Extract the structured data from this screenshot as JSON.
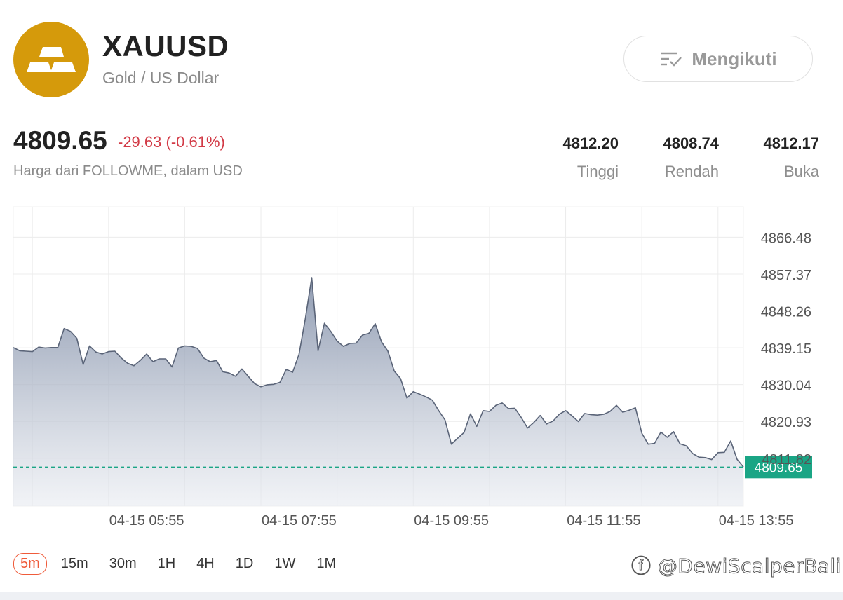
{
  "header": {
    "symbol": "XAUUSD",
    "name": "Gold / US Dollar",
    "follow_label": "Mengikuti",
    "logo_icon": "gold-bars-icon",
    "logo_color": "#d59a0b"
  },
  "quote": {
    "price": "4809.65",
    "change": "-29.63 (-0.61%)",
    "source": "Harga dari FOLLOWME, dalam USD",
    "change_color": "#d23a46"
  },
  "stats": [
    {
      "value": "4812.20",
      "label": "Tinggi"
    },
    {
      "value": "4808.74",
      "label": "Rendah"
    },
    {
      "value": "4812.17",
      "label": "Buka"
    }
  ],
  "chart_data": {
    "type": "area",
    "y_ticks": [
      "4866.48",
      "4857.37",
      "4848.26",
      "4839.15",
      "4830.04",
      "4820.93",
      "4811.82"
    ],
    "y_ticks_num": [
      4866.48,
      4857.37,
      4848.26,
      4839.15,
      4830.04,
      4820.93,
      4811.82
    ],
    "ylim": [
      4800.0,
      4874.0
    ],
    "x_ticks": [
      "04-15 05:55",
      "04-15 07:55",
      "04-15 09:55",
      "04-15 11:55",
      "04-15 13:55"
    ],
    "x_tick_index": [
      24,
      48,
      72,
      96,
      120
    ],
    "current_price_label": "4809.65",
    "current_price": 4809.65,
    "grid": true,
    "line_color": "#5a6478",
    "current_price_color": "#1aa585",
    "series": [
      {
        "values": [
          4839.2,
          4838.4,
          4838.3,
          4838.2,
          4839.3,
          4839.1,
          4839.2,
          4839.2,
          4843.9,
          4843.2,
          4841.5,
          4835.0,
          4839.6,
          4838.1,
          4837.6,
          4838.2,
          4838.3,
          4836.6,
          4835.3,
          4834.7,
          4836.0,
          4837.6,
          4835.7,
          4836.4,
          4836.4,
          4834.4,
          4839.1,
          4839.6,
          4839.5,
          4839.0,
          4836.6,
          4835.7,
          4836.0,
          4833.2,
          4832.9,
          4832.1,
          4833.9,
          4832.1,
          4830.3,
          4829.5,
          4830.0,
          4830.1,
          4830.6,
          4833.8,
          4833.1,
          4837.5,
          4846.4,
          4856.5,
          4838.4,
          4845.2,
          4843.2,
          4840.8,
          4839.5,
          4840.2,
          4840.3,
          4842.3,
          4842.7,
          4845.1,
          4840.6,
          4838.3,
          4833.4,
          4831.5,
          4826.7,
          4828.3,
          4827.7,
          4827.0,
          4826.2,
          4823.6,
          4821.3,
          4815.3,
          4816.8,
          4818.2,
          4822.8,
          4819.7,
          4823.6,
          4823.4,
          4824.9,
          4825.5,
          4824.1,
          4824.2,
          4821.9,
          4819.3,
          4820.7,
          4822.4,
          4820.3,
          4821.0,
          4822.7,
          4823.6,
          4822.3,
          4820.9,
          4822.9,
          4822.6,
          4822.5,
          4822.7,
          4823.4,
          4824.9,
          4823.2,
          4823.7,
          4824.3,
          4818.0,
          4815.3,
          4815.5,
          4818.3,
          4817.0,
          4818.4,
          4815.4,
          4814.9,
          4813.0,
          4812.1,
          4812.0,
          4811.5,
          4813.2,
          4813.3,
          4816.1,
          4811.6,
          4809.65
        ]
      }
    ]
  },
  "timeframes": {
    "items": [
      "5m",
      "15m",
      "30m",
      "1H",
      "4H",
      "1D",
      "1W",
      "1M"
    ],
    "active": "5m",
    "active_color": "#ef5b3a"
  },
  "watermark": "ⓕ @DewiScalperBali"
}
